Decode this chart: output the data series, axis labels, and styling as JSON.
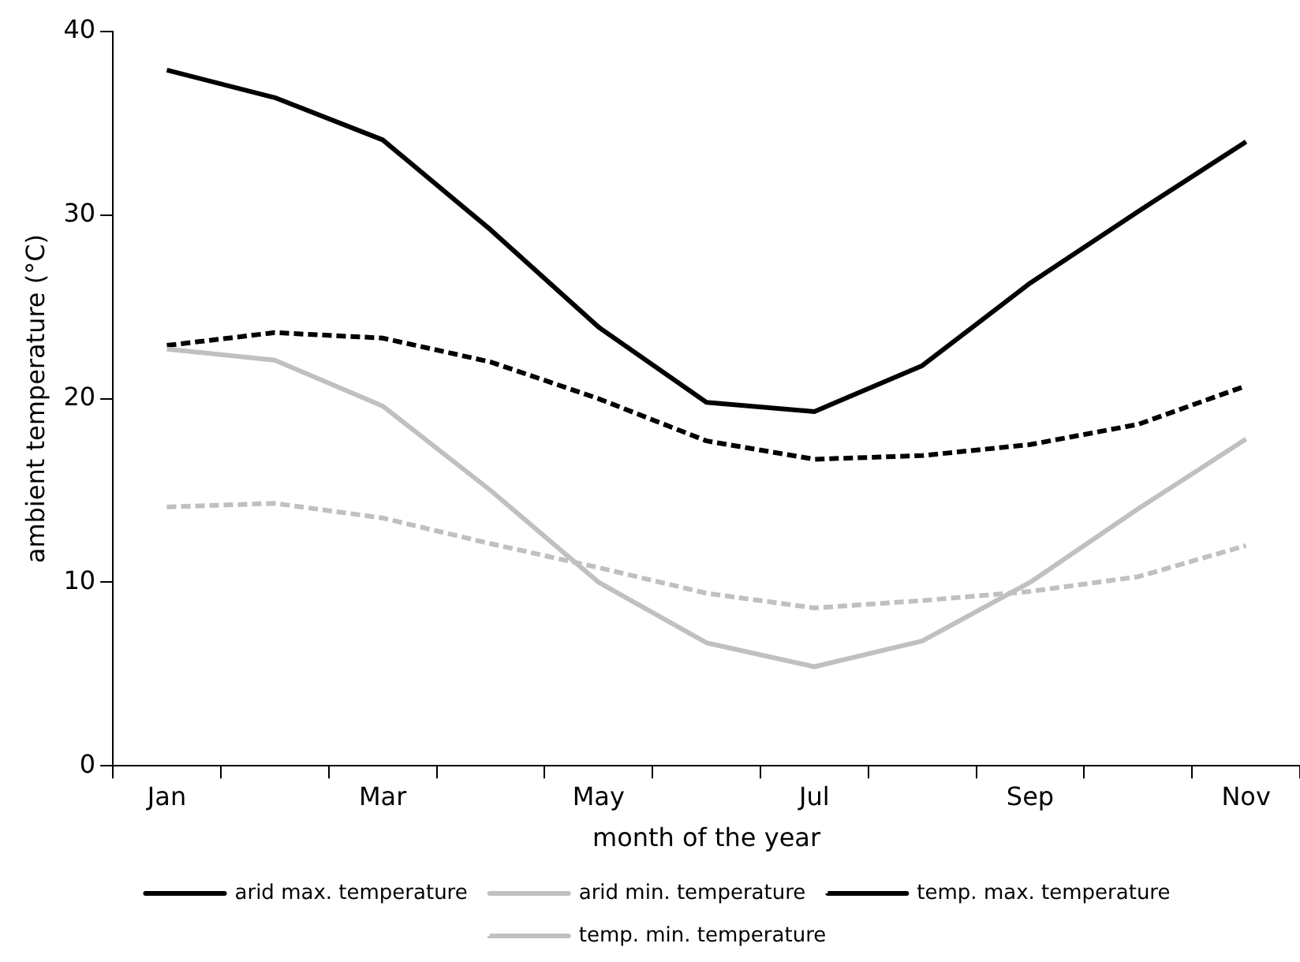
{
  "chart_data": {
    "type": "line",
    "xlabel": "month of the year",
    "ylabel": "ambient temperature (°C)",
    "categories": [
      "Jan",
      null,
      "Mar",
      null,
      "May",
      null,
      "Jul",
      null,
      "Sep",
      null,
      "Nov"
    ],
    "series": [
      {
        "name": "arid max. temperature",
        "color": "#000000",
        "line_style": "solid",
        "values": [
          37.9,
          36.4,
          34.1,
          29.2,
          23.9,
          19.8,
          19.3,
          21.8,
          26.3,
          30.2,
          34.0
        ]
      },
      {
        "name": "arid min. temperature",
        "color": "#c0c0c0",
        "line_style": "solid",
        "values": [
          22.7,
          22.1,
          19.6,
          15.0,
          10.0,
          6.7,
          5.4,
          6.8,
          10.0,
          14.0,
          17.8
        ]
      },
      {
        "name": "temp. max. temperature",
        "color": "#000000",
        "line_style": "dashed",
        "values": [
          22.9,
          23.6,
          23.3,
          22.0,
          20.0,
          17.7,
          16.7,
          16.9,
          17.5,
          18.6,
          20.7
        ]
      },
      {
        "name": "temp. min. temperature",
        "color": "#c0c0c0",
        "line_style": "dashed",
        "values": [
          14.1,
          14.3,
          13.5,
          12.1,
          10.8,
          9.4,
          8.6,
          9.0,
          9.5,
          10.3,
          12.0
        ]
      }
    ],
    "ylim": [
      0,
      40
    ],
    "yticks": [
      0,
      10,
      20,
      30,
      40
    ],
    "grid": false,
    "legend": "bottom",
    "marker": "none"
  }
}
